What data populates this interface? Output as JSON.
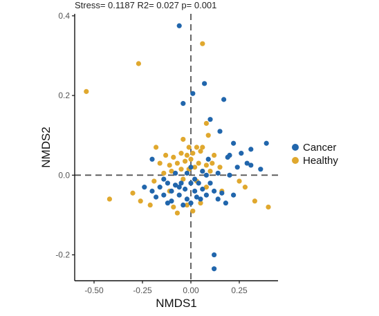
{
  "stats_text": "Stress= 0.1187  R2= 0.027  p= 0.001",
  "chart_data": {
    "type": "scatter",
    "title": "",
    "xlabel": "NMDS1",
    "ylabel": "NMDS2",
    "xlim": [
      -0.6,
      0.45
    ],
    "ylim": [
      -0.265,
      0.405
    ],
    "xticks": [
      -0.5,
      -0.25,
      0,
      0.25
    ],
    "xtick_labels": [
      "-0.50",
      "-0.25",
      "0.00",
      "0.25"
    ],
    "yticks": [
      -0.2,
      0,
      0.2,
      0.4
    ],
    "ytick_labels": [
      "-0.2",
      "0.0",
      "0.2",
      "0.4"
    ],
    "reference_lines": {
      "x": 0,
      "y": 0,
      "style": "dashed"
    },
    "legend_position": "right",
    "series": [
      {
        "name": "Cancer",
        "color": "#2166ac",
        "points": [
          [
            -0.06,
            0.375
          ],
          [
            0.07,
            0.23
          ],
          [
            0.17,
            0.19
          ],
          [
            -0.04,
            0.18
          ],
          [
            0.01,
            0.205
          ],
          [
            0.1,
            0.14
          ],
          [
            0.15,
            0.11
          ],
          [
            0.22,
            0.08
          ],
          [
            0.39,
            0.08
          ],
          [
            0.31,
            0.065
          ],
          [
            0.2,
            0.05
          ],
          [
            0.09,
            0.04
          ],
          [
            0.19,
            0.045
          ],
          [
            0.26,
            0.055
          ],
          [
            0.29,
            0.03
          ],
          [
            0.36,
            0.015
          ],
          [
            0.31,
            0.025
          ],
          [
            0.2,
            0.0
          ],
          [
            -0.2,
            0.04
          ],
          [
            0.24,
            0.02
          ],
          [
            0.12,
            -0.2
          ],
          [
            0.12,
            -0.235
          ],
          [
            0.06,
            0.01
          ],
          [
            0.0,
            0.02
          ],
          [
            -0.24,
            -0.03
          ],
          [
            -0.2,
            -0.04
          ],
          [
            -0.16,
            -0.03
          ],
          [
            -0.14,
            -0.05
          ],
          [
            -0.12,
            -0.02
          ],
          [
            -0.1,
            -0.04
          ],
          [
            -0.08,
            -0.025
          ],
          [
            -0.06,
            -0.05
          ],
          [
            -0.05,
            -0.02
          ],
          [
            -0.03,
            -0.035
          ],
          [
            -0.02,
            -0.06
          ],
          [
            0.0,
            -0.02
          ],
          [
            0.02,
            -0.04
          ],
          [
            0.04,
            -0.02
          ],
          [
            0.06,
            -0.035
          ],
          [
            0.08,
            -0.05
          ],
          [
            0.1,
            -0.02
          ],
          [
            0.12,
            -0.04
          ],
          [
            0.14,
            -0.06
          ],
          [
            0.18,
            -0.07
          ],
          [
            0.22,
            -0.05
          ],
          [
            -0.18,
            -0.055
          ],
          [
            -0.1,
            -0.065
          ],
          [
            -0.04,
            -0.075
          ],
          [
            0.0,
            -0.07
          ],
          [
            0.05,
            -0.06
          ],
          [
            -0.08,
            0.005
          ],
          [
            -0.02,
            0.005
          ],
          [
            0.02,
            -0.01
          ],
          [
            0.08,
            0.0
          ],
          [
            -0.14,
            -0.01
          ],
          [
            0.14,
            0.005
          ],
          [
            -0.06,
            -0.03
          ],
          [
            0.03,
            -0.055
          ],
          [
            -0.12,
            -0.07
          ],
          [
            0.16,
            -0.045
          ]
        ]
      },
      {
        "name": "Healthy",
        "color": "#e0a82e",
        "points": [
          [
            -0.54,
            0.21
          ],
          [
            -0.27,
            0.28
          ],
          [
            0.06,
            0.33
          ],
          [
            0.08,
            0.13
          ],
          [
            0.09,
            0.1
          ],
          [
            -0.18,
            0.07
          ],
          [
            -0.04,
            0.09
          ],
          [
            -0.01,
            0.07
          ],
          [
            0.03,
            0.07
          ],
          [
            0.06,
            0.07
          ],
          [
            -0.13,
            0.05
          ],
          [
            -0.09,
            0.045
          ],
          [
            -0.05,
            0.055
          ],
          [
            -0.02,
            0.05
          ],
          [
            0.01,
            0.055
          ],
          [
            0.05,
            0.06
          ],
          [
            0.12,
            0.05
          ],
          [
            -0.16,
            0.03
          ],
          [
            -0.11,
            0.025
          ],
          [
            -0.07,
            0.03
          ],
          [
            -0.03,
            0.035
          ],
          [
            0.0,
            0.04
          ],
          [
            0.04,
            0.03
          ],
          [
            0.08,
            0.025
          ],
          [
            0.11,
            0.03
          ],
          [
            0.15,
            0.02
          ],
          [
            -0.14,
            0.005
          ],
          [
            -0.1,
            0.01
          ],
          [
            -0.05,
            0.015
          ],
          [
            -0.01,
            0.015
          ],
          [
            0.02,
            0.02
          ],
          [
            0.06,
            0.01
          ],
          [
            0.1,
            0.01
          ],
          [
            0.25,
            -0.015
          ],
          [
            0.28,
            -0.03
          ],
          [
            0.33,
            -0.065
          ],
          [
            0.4,
            -0.08
          ],
          [
            0.16,
            -0.04
          ],
          [
            -0.42,
            -0.06
          ],
          [
            -0.3,
            -0.045
          ],
          [
            -0.26,
            -0.065
          ],
          [
            -0.21,
            -0.075
          ],
          [
            -0.09,
            -0.08
          ],
          [
            -0.07,
            -0.095
          ],
          [
            -0.02,
            -0.075
          ],
          [
            0.01,
            -0.09
          ],
          [
            0.05,
            -0.07
          ],
          [
            0.08,
            -0.03
          ],
          [
            -0.19,
            -0.015
          ],
          [
            -0.04,
            -0.01
          ],
          [
            0.03,
            -0.015
          ],
          [
            -0.11,
            -0.04
          ]
        ]
      }
    ]
  }
}
